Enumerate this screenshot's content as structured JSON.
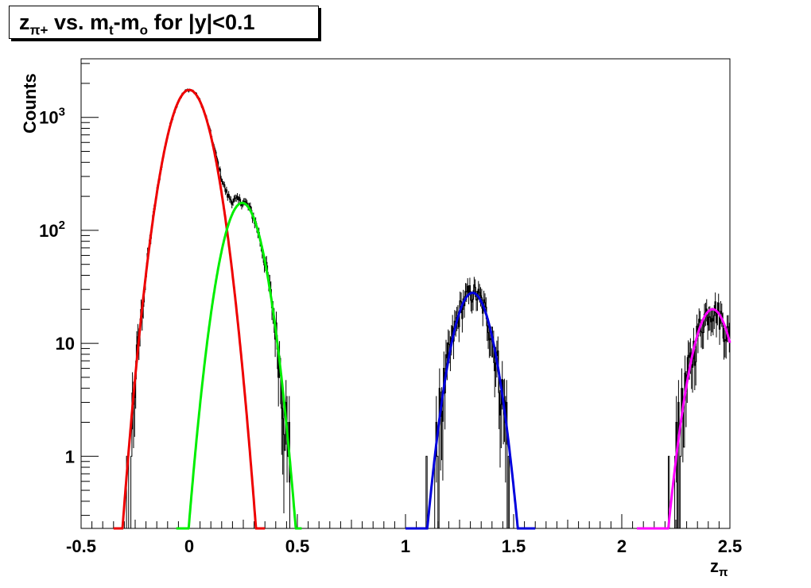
{
  "title": {
    "z": "z",
    "z_sub": "π+",
    "mid": " vs. m",
    "m_sub": "t",
    "dash": "-m",
    "o_sub": "o",
    "tail": " for |y|<0.1"
  },
  "chart_data": {
    "type": "line",
    "xlabel": "z",
    "xlabel_sub": "π",
    "ylabel": "Counts",
    "xlim": [
      -0.5,
      2.5
    ],
    "ylim": [
      0.23,
      3300
    ],
    "y_scale": "log",
    "x_ticks": [
      {
        "value": -0.5,
        "label": "-0.5"
      },
      {
        "value": 0,
        "label": "0"
      },
      {
        "value": 0.5,
        "label": "0.5"
      },
      {
        "value": 1,
        "label": "1"
      },
      {
        "value": 1.5,
        "label": "1.5"
      },
      {
        "value": 2,
        "label": "2"
      },
      {
        "value": 2.5,
        "label": "2.5"
      }
    ],
    "y_ticks": [
      {
        "value": 1,
        "label": "1"
      },
      {
        "value": 10,
        "label": "10"
      },
      {
        "value": 100,
        "label": "10",
        "sup": "2"
      },
      {
        "value": 1000,
        "label": "10",
        "sup": "3"
      }
    ],
    "fits": [
      {
        "color": "#ee0000",
        "amplitude": 1750,
        "mean": 0.0,
        "sigma": 0.073,
        "xmin": -0.35,
        "xmax": 0.35
      },
      {
        "color": "#00ee00",
        "amplitude": 175,
        "mean": 0.245,
        "sigma": 0.068,
        "xmin": -0.06,
        "xmax": 0.52
      },
      {
        "color": "#0000dd",
        "amplitude": 28,
        "mean": 1.31,
        "sigma": 0.0675,
        "xmin": 1.0,
        "xmax": 1.6
      },
      {
        "color": "#ff00ff",
        "amplitude": 20,
        "mean": 2.42,
        "sigma": 0.0685,
        "xmin": 2.07,
        "xmax": 2.5
      }
    ],
    "histogram_color": "#000000"
  }
}
